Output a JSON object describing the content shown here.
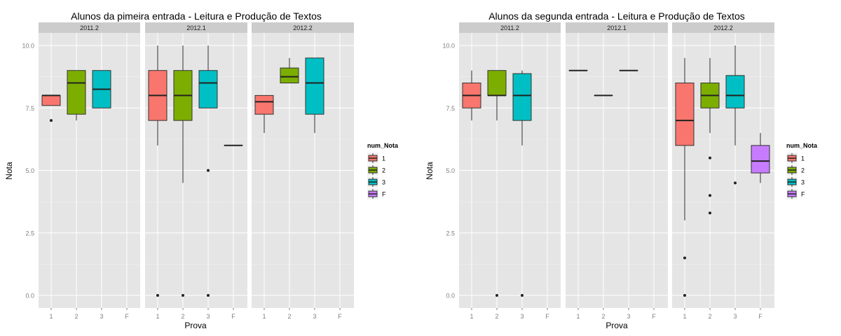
{
  "chart_data": [
    {
      "type": "boxplot",
      "title": "Alunos da pimeira entrada -  Leitura e Produção de Textos",
      "xlabel": "Prova",
      "ylabel": "Nota",
      "ylim": [
        0,
        10
      ],
      "yticks": [
        "0.0",
        "2.5",
        "5.0",
        "7.5",
        "10.0"
      ],
      "categories": [
        "1",
        "2",
        "3",
        "F"
      ],
      "legend": {
        "title": "num_Nota",
        "position": "right",
        "items": [
          "1",
          "2",
          "3",
          "F"
        ]
      },
      "facets": [
        {
          "label": "2011.2",
          "boxes": [
            {
              "cat": "1",
              "min": 7.6,
              "q1": 7.6,
              "median": 8.0,
              "q3": 8.0,
              "max": 8.0,
              "outliers": [
                7.0
              ]
            },
            {
              "cat": "2",
              "min": 7.0,
              "q1": 7.25,
              "median": 8.5,
              "q3": 9.0,
              "max": 9.0,
              "outliers": []
            },
            {
              "cat": "3",
              "min": 7.5,
              "q1": 7.5,
              "median": 8.25,
              "q3": 9.0,
              "max": 9.0,
              "outliers": []
            }
          ]
        },
        {
          "label": "2012.1",
          "boxes": [
            {
              "cat": "1",
              "min": 6.0,
              "q1": 7.0,
              "median": 8.0,
              "q3": 9.0,
              "max": 10.0,
              "outliers": [
                0.0
              ]
            },
            {
              "cat": "2",
              "min": 4.5,
              "q1": 7.0,
              "median": 8.0,
              "q3": 9.0,
              "max": 10.0,
              "outliers": [
                0.0
              ]
            },
            {
              "cat": "3",
              "min": 7.5,
              "q1": 7.5,
              "median": 8.5,
              "q3": 9.0,
              "max": 10.0,
              "outliers": [
                5.0,
                0.0
              ]
            },
            {
              "cat": "F",
              "min": 6.0,
              "q1": 6.0,
              "median": 6.0,
              "q3": 6.0,
              "max": 6.0,
              "outliers": []
            }
          ]
        },
        {
          "label": "2012.2",
          "boxes": [
            {
              "cat": "1",
              "min": 6.5,
              "q1": 7.25,
              "median": 7.75,
              "q3": 8.0,
              "max": 8.0,
              "outliers": []
            },
            {
              "cat": "2",
              "min": 8.5,
              "q1": 8.5,
              "median": 8.75,
              "q3": 9.1,
              "max": 9.5,
              "outliers": []
            },
            {
              "cat": "3",
              "min": 6.5,
              "q1": 7.25,
              "median": 8.5,
              "q3": 9.5,
              "max": 9.5,
              "outliers": []
            }
          ]
        }
      ]
    },
    {
      "type": "boxplot",
      "title": "Alunos da segunda entrada -  Leitura e Produção de Textos",
      "xlabel": "Prova",
      "ylabel": "Nota",
      "ylim": [
        0,
        10
      ],
      "yticks": [
        "0.0",
        "2.5",
        "5.0",
        "7.5",
        "10.0"
      ],
      "categories": [
        "1",
        "2",
        "3",
        "F"
      ],
      "legend": {
        "title": "num_Nota",
        "position": "right",
        "items": [
          "1",
          "2",
          "3",
          "F"
        ]
      },
      "facets": [
        {
          "label": "2011.2",
          "boxes": [
            {
              "cat": "1",
              "min": 7.0,
              "q1": 7.5,
              "median": 8.0,
              "q3": 8.5,
              "max": 9.0,
              "outliers": []
            },
            {
              "cat": "2",
              "min": 7.0,
              "q1": 8.0,
              "median": 8.0,
              "q3": 9.0,
              "max": 9.0,
              "outliers": [
                0.0
              ]
            },
            {
              "cat": "3",
              "min": 6.0,
              "q1": 7.0,
              "median": 8.0,
              "q3": 8.875,
              "max": 9.0,
              "outliers": [
                0.0
              ]
            }
          ]
        },
        {
          "label": "2012.1",
          "boxes": [
            {
              "cat": "1",
              "min": 9.0,
              "q1": 9.0,
              "median": 9.0,
              "q3": 9.0,
              "max": 9.0,
              "outliers": []
            },
            {
              "cat": "2",
              "min": 8.0,
              "q1": 8.0,
              "median": 8.0,
              "q3": 8.0,
              "max": 8.0,
              "outliers": []
            },
            {
              "cat": "3",
              "min": 9.0,
              "q1": 9.0,
              "median": 9.0,
              "q3": 9.0,
              "max": 9.0,
              "outliers": []
            }
          ]
        },
        {
          "label": "2012.2",
          "boxes": [
            {
              "cat": "1",
              "min": 3.0,
              "q1": 6.0,
              "median": 7.0,
              "q3": 8.5,
              "max": 9.5,
              "outliers": [
                1.5,
                0.0
              ]
            },
            {
              "cat": "2",
              "min": 6.5,
              "q1": 7.5,
              "median": 8.0,
              "q3": 8.5,
              "max": 9.5,
              "outliers": [
                5.5,
                4.0,
                3.3
              ]
            },
            {
              "cat": "3",
              "min": 6.0,
              "q1": 7.5,
              "median": 8.0,
              "q3": 8.8,
              "max": 10.0,
              "outliers": [
                4.5
              ]
            },
            {
              "cat": "F",
              "min": 4.5,
              "q1": 4.9,
              "median": 5.375,
              "q3": 6.0,
              "max": 6.5,
              "outliers": []
            }
          ]
        }
      ]
    }
  ],
  "colors": {
    "1": "#F8766D",
    "2": "#7CAE00",
    "3": "#00BFC4",
    "F": "#C77CFF",
    "panel_bg": "#E5E5E5",
    "strip_bg": "#CCCCCC",
    "grid": "#F2F2F2",
    "tick_text": "#7F7F7F"
  }
}
